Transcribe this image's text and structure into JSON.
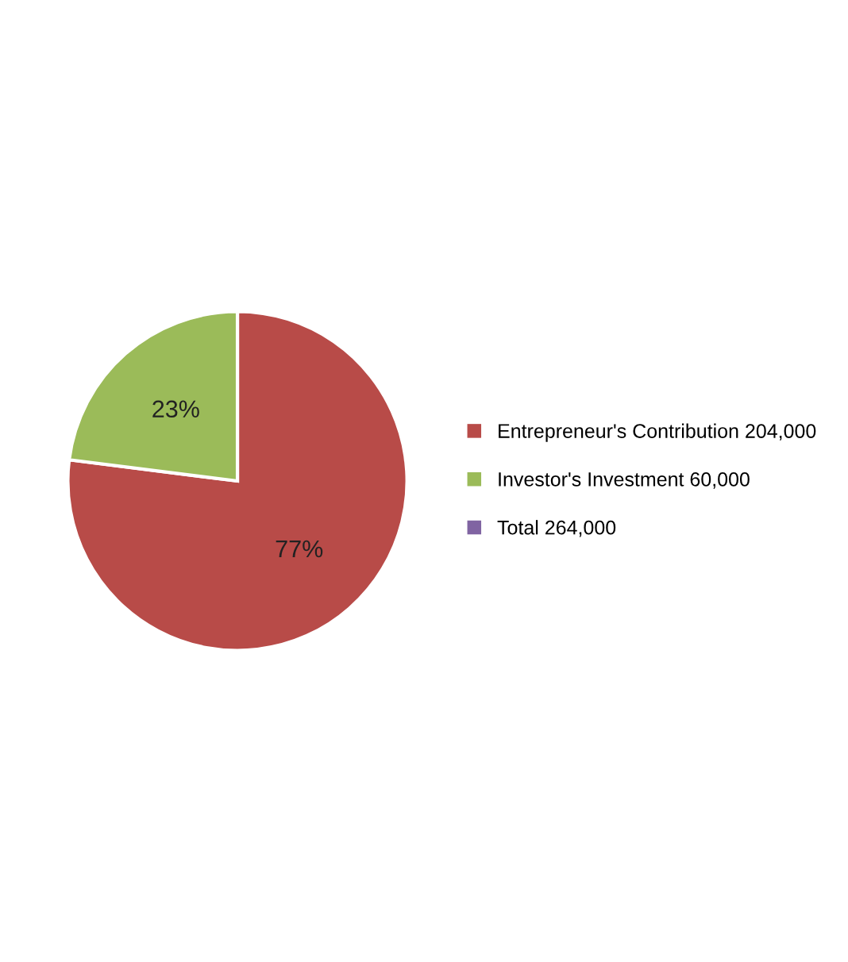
{
  "chart_data": {
    "type": "pie",
    "categories": [
      "Entrepreneur's Contribution 204,000",
      "Investor's Investment 60,000",
      "Total 264,000"
    ],
    "values": [
      77,
      23,
      null
    ],
    "colors": [
      "#b84b48",
      "#9bbb59",
      "#8064a2"
    ],
    "value_labels": [
      "77%",
      "23%",
      null
    ],
    "legend": "right"
  }
}
